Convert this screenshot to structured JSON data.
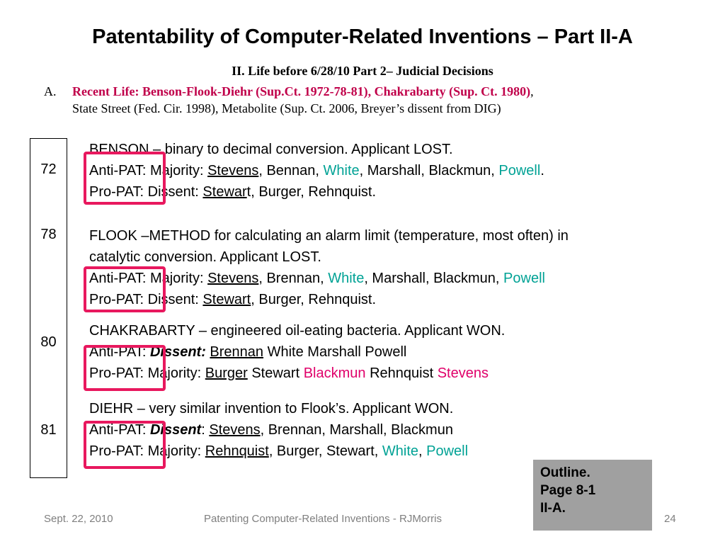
{
  "title": "Patentability of Computer-Related Inventions – Part II-A",
  "subhead": "II.  Life before 6/28/10 Part 2– Judicial Decisions",
  "recent": {
    "letter": "A.",
    "red": "Recent Life:  Benson-Flook-Diehr (Sup.Ct. 1972-78-81), Chakrabarty (Sup. Ct. 1980)",
    "comma": ",",
    "line2": "State Street (Fed. Cir. 1998), Metabolite (Sup. Ct. 2006, Breyer’s dissent from DIG)"
  },
  "years": [
    "72",
    "78",
    "80",
    "81"
  ],
  "benson": {
    "l1": "BENSON – binary to decimal conversion.  Applicant LOST.",
    "anti_label": "Anti-PAT:",
    "anti_mid": " Majority:  ",
    "anti_u": "Stevens",
    "anti_a": ", Bennan, ",
    "anti_t1": "White",
    "anti_b": ", Marshall, Blackmun, ",
    "anti_t2": "Powell",
    "anti_end": ".",
    "pro_label": "Pro-PAT:",
    "pro_mid": "  Dissent:   ",
    "pro_u": "Stewar",
    "pro_end": "t, Burger, Rehnquist."
  },
  "flook": {
    "l1": "FLOOK –METHOD for calculating an alarm limit (temperature, most often) in",
    "l2": "catalytic conversion.  Applicant LOST.",
    "anti_label": "Anti-PAT:",
    "anti_mid": "  Majority: ",
    "anti_u": "Stevens",
    "anti_a": ", Brennan, ",
    "anti_t1": "White",
    "anti_b": ", Marshall, Blackmun, ",
    "anti_t2": "Powell",
    "pro_label": "Pro-PAT:",
    "pro_mid": "   Dissent:  ",
    "pro_u": "Stewart",
    "pro_end": ", Burger, Rehnquist."
  },
  "chakrabarty": {
    "l1": "CHAKRABARTY –  engineered oil-eating bacteria.  Applicant WON.",
    "anti_label": "Anti-PAT:",
    "anti_bi": "Dissent:",
    "anti_u": "Brennan",
    "anti_end": " White Marshall Powell",
    "pro_label": "Pro-PAT:",
    "pro_mid": "   Majority:  ",
    "pro_u": "Burger",
    "pro_a": " Stewart ",
    "pro_p1": "Blackmun",
    "pro_b": " Rehnquist ",
    "pro_p2": "Stevens"
  },
  "diehr": {
    "l1": "DIEHR – very similar invention to Flook’s.  Applicant WON.",
    "anti_label": "Anti-PAT:",
    "anti_bi": "Dissent",
    "anti_colon": ":  ",
    "anti_u": "Stevens",
    "anti_end": ", Brennan, Marshall, Blackmun",
    "pro_label": "Pro-PAT:",
    "pro_mid": "   Majority:  ",
    "pro_u": "Rehnquist",
    "pro_a": ", Burger, Stewart, ",
    "pro_t1": "White",
    "pro_b": ", ",
    "pro_t2": "Powell"
  },
  "outline": [
    "Outline.",
    "Page 8-1",
    "II-A."
  ],
  "footer": {
    "date": "Sept. 22, 2010",
    "center": "Patenting Computer-Related Inventions - RJMorris",
    "page": "24"
  },
  "colors": {
    "highlight_box": "#e8185e",
    "teal": "#00a295",
    "pink": "#e0006a",
    "title_red": "#c0004a",
    "outline_bg": "#a0a0a0"
  }
}
